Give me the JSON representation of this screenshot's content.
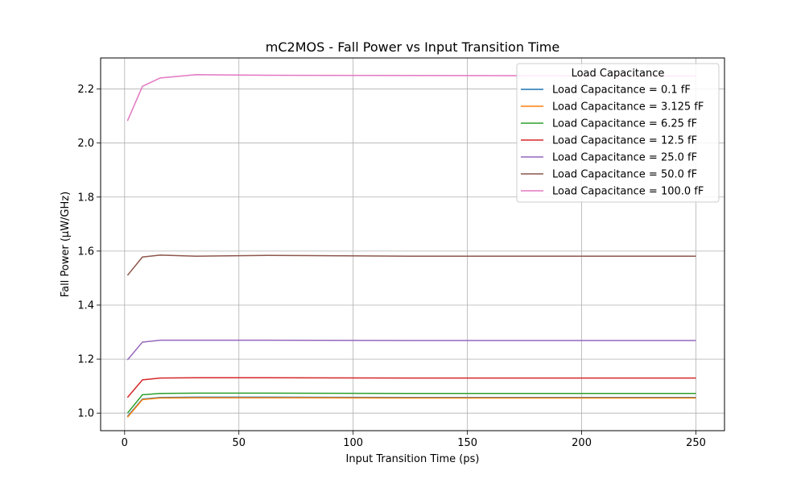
{
  "chart_data": {
    "type": "line",
    "title": "mC2MOS - Fall Power vs Input Transition Time",
    "xlabel": "Input Transition Time (ps)",
    "ylabel": "Fall Power (µW/GHz)",
    "xlim": [
      -10.5,
      262.5
    ],
    "ylim": [
      0.935,
      2.315
    ],
    "xticks": [
      0,
      50,
      100,
      150,
      200,
      250
    ],
    "yticks": [
      1.0,
      1.2,
      1.4,
      1.6,
      1.8,
      2.0,
      2.2
    ],
    "ytick_labels": [
      "1.0",
      "1.2",
      "1.4",
      "1.6",
      "1.8",
      "2.0",
      "2.2"
    ],
    "grid": true,
    "legend": {
      "title": "Load Capacitance",
      "placement": "top-right"
    },
    "x": [
      1.25,
      7.8,
      15.6,
      31.25,
      62.5,
      125,
      250
    ],
    "series": [
      {
        "name": "Load Capacitance = 0.1 fF",
        "color": "#1f77b4",
        "values": [
          0.988,
          1.052,
          1.058,
          1.059,
          1.059,
          1.058,
          1.058
        ]
      },
      {
        "name": "Load Capacitance = 3.125 fF",
        "color": "#ff7f0e",
        "values": [
          0.985,
          1.05,
          1.056,
          1.057,
          1.057,
          1.056,
          1.056
        ]
      },
      {
        "name": "Load Capacitance = 6.25 fF",
        "color": "#2ca02c",
        "values": [
          1.0,
          1.068,
          1.073,
          1.074,
          1.074,
          1.073,
          1.073
        ]
      },
      {
        "name": "Load Capacitance = 12.5 fF",
        "color": "#d62728",
        "values": [
          1.058,
          1.123,
          1.13,
          1.131,
          1.131,
          1.13,
          1.13
        ]
      },
      {
        "name": "Load Capacitance = 25.0 fF",
        "color": "#9467bd",
        "values": [
          1.197,
          1.263,
          1.27,
          1.27,
          1.27,
          1.269,
          1.269
        ]
      },
      {
        "name": "Load Capacitance = 50.0 fF",
        "color": "#8c564b",
        "values": [
          1.51,
          1.578,
          1.585,
          1.581,
          1.584,
          1.581,
          1.581
        ]
      },
      {
        "name": "Load Capacitance = 100.0 fF",
        "color": "#e377c2",
        "values": [
          2.082,
          2.21,
          2.241,
          2.253,
          2.251,
          2.25,
          2.248
        ]
      }
    ]
  }
}
